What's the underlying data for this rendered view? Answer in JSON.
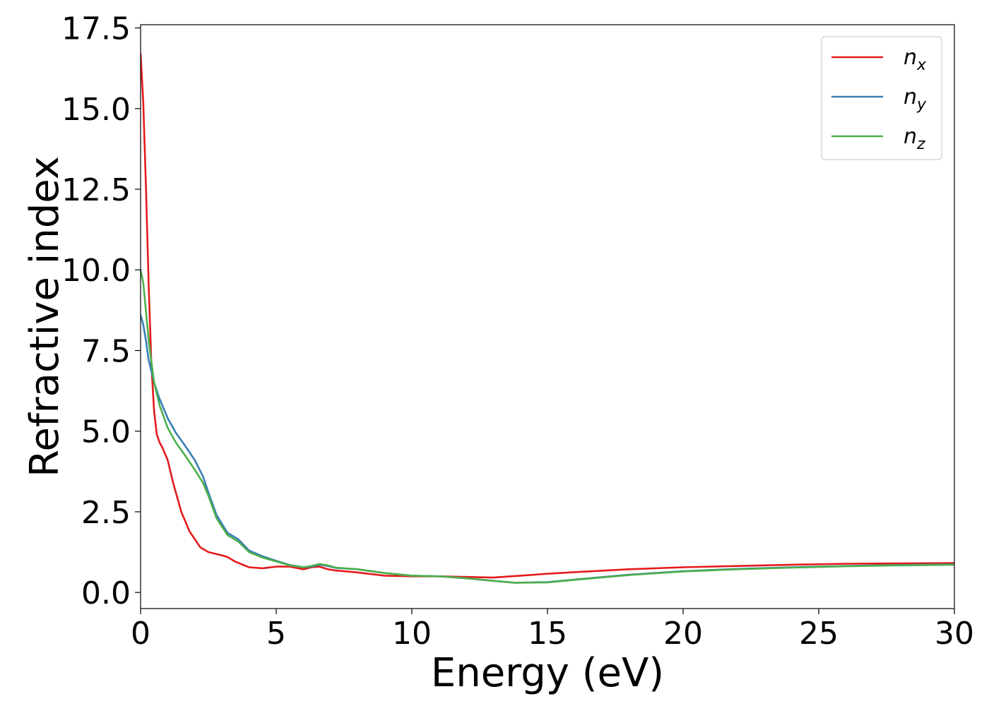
{
  "chart_data": {
    "type": "line",
    "xlabel": "Energy (eV)",
    "ylabel": "Refractive index",
    "xlim": [
      0,
      30
    ],
    "ylim": [
      -0.5,
      17.6
    ],
    "xticks": [
      0,
      5,
      10,
      15,
      20,
      25,
      30
    ],
    "xtick_labels": [
      "0",
      "5",
      "10",
      "15",
      "20",
      "25",
      "30"
    ],
    "yticks": [
      0,
      2.5,
      5,
      7.5,
      10,
      12.5,
      15,
      17.5
    ],
    "ytick_labels": [
      "0.0",
      "2.5",
      "5.0",
      "7.5",
      "10.0",
      "12.5",
      "15.0",
      "17.5"
    ],
    "grid": false,
    "legend_position": "top-right",
    "series": [
      {
        "name": "n_x",
        "label_base": "n",
        "label_sub": "x",
        "color": "#e41a1c",
        "x": [
          0,
          0.1,
          0.2,
          0.3,
          0.4,
          0.5,
          0.6,
          0.7,
          0.8,
          1.0,
          1.2,
          1.5,
          1.8,
          2.0,
          2.2,
          2.5,
          3.0,
          3.2,
          3.5,
          4.0,
          4.5,
          5.0,
          5.5,
          6.0,
          6.3,
          6.6,
          6.9,
          7.2,
          8.0,
          9.0,
          10.0,
          11.0,
          12.0,
          13.0,
          14.0,
          15.0,
          16.0,
          18.0,
          20.0,
          22.0,
          24.0,
          26.0,
          28.0,
          30.0
        ],
        "values": [
          16.7,
          15.2,
          12.5,
          9.5,
          7.0,
          5.6,
          4.9,
          4.65,
          4.5,
          4.1,
          3.4,
          2.5,
          1.9,
          1.65,
          1.4,
          1.25,
          1.15,
          1.1,
          0.95,
          0.78,
          0.75,
          0.8,
          0.8,
          0.72,
          0.78,
          0.8,
          0.72,
          0.68,
          0.62,
          0.52,
          0.5,
          0.5,
          0.48,
          0.46,
          0.52,
          0.58,
          0.63,
          0.72,
          0.78,
          0.82,
          0.86,
          0.89,
          0.9,
          0.91
        ]
      },
      {
        "name": "n_y",
        "label_base": "n",
        "label_sub": "y",
        "color": "#377eb8",
        "x": [
          0,
          0.1,
          0.2,
          0.3,
          0.5,
          0.7,
          1.0,
          1.3,
          1.6,
          2.0,
          2.3,
          2.5,
          2.8,
          3.2,
          3.6,
          4.0,
          4.5,
          5.0,
          5.5,
          6.0,
          6.3,
          6.6,
          6.9,
          7.2,
          8.0,
          9.0,
          10.0,
          11.0,
          12.0,
          13.0,
          13.8,
          15.0,
          16.0,
          18.0,
          20.0,
          22.0,
          24.0,
          26.0,
          28.0,
          30.0
        ],
        "values": [
          8.6,
          8.3,
          7.8,
          7.2,
          6.5,
          6.0,
          5.4,
          4.95,
          4.6,
          4.1,
          3.6,
          3.1,
          2.4,
          1.85,
          1.65,
          1.3,
          1.12,
          0.98,
          0.85,
          0.78,
          0.8,
          0.86,
          0.82,
          0.76,
          0.72,
          0.6,
          0.52,
          0.5,
          0.44,
          0.36,
          0.3,
          0.32,
          0.4,
          0.55,
          0.66,
          0.73,
          0.78,
          0.82,
          0.85,
          0.87
        ]
      },
      {
        "name": "n_z",
        "label_base": "n",
        "label_sub": "z",
        "color": "#4daf4a",
        "x": [
          0,
          0.1,
          0.2,
          0.3,
          0.5,
          0.7,
          1.0,
          1.3,
          1.6,
          2.0,
          2.3,
          2.5,
          2.8,
          3.2,
          3.6,
          4.0,
          4.5,
          5.0,
          5.5,
          6.0,
          6.3,
          6.6,
          6.9,
          7.2,
          8.0,
          9.0,
          10.0,
          11.0,
          12.0,
          13.0,
          13.8,
          15.0,
          16.0,
          18.0,
          20.0,
          22.0,
          24.0,
          26.0,
          28.0,
          30.0
        ],
        "values": [
          10.0,
          9.6,
          8.7,
          7.8,
          6.5,
          5.8,
          5.1,
          4.65,
          4.3,
          3.8,
          3.4,
          3.0,
          2.3,
          1.78,
          1.58,
          1.25,
          1.08,
          0.96,
          0.84,
          0.78,
          0.82,
          0.88,
          0.84,
          0.77,
          0.72,
          0.6,
          0.52,
          0.5,
          0.44,
          0.36,
          0.3,
          0.31,
          0.39,
          0.54,
          0.65,
          0.72,
          0.77,
          0.81,
          0.84,
          0.86
        ]
      }
    ]
  }
}
